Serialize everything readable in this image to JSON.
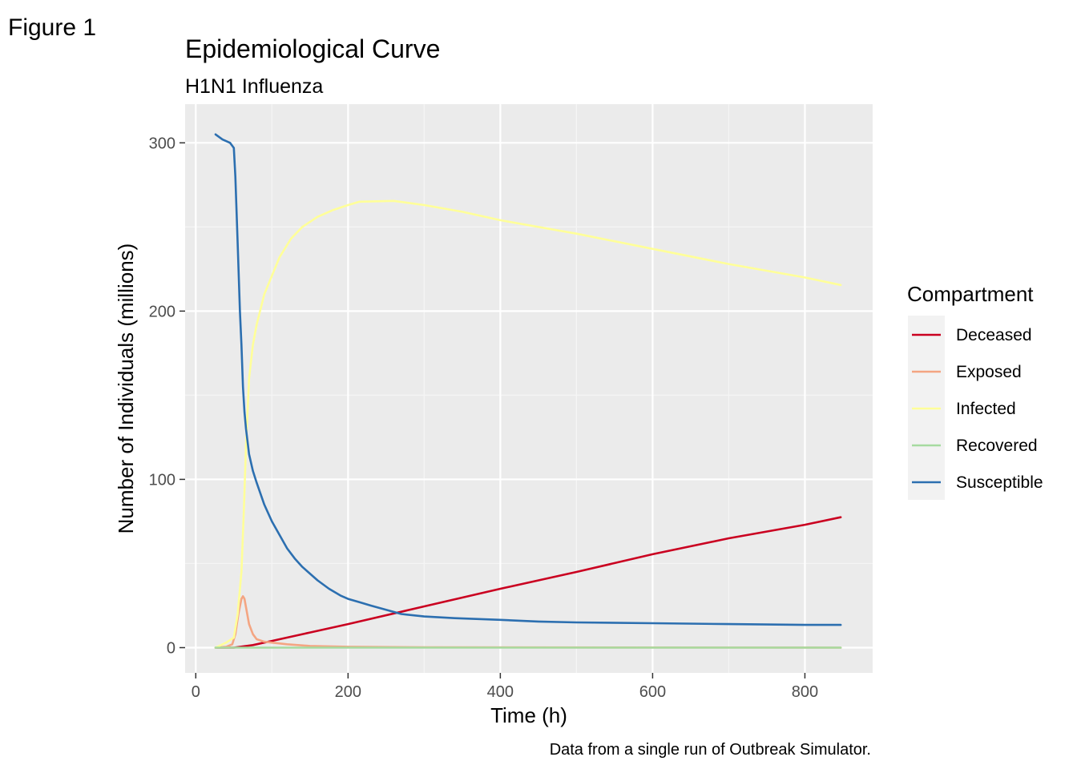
{
  "figure_label": "Figure 1",
  "caption": "Data from a single run of Outbreak Simulator.",
  "chart_data": {
    "type": "line",
    "title": "Epidemiological Curve",
    "subtitle": "H1N1 Influenza",
    "xlabel": "Time (h)",
    "ylabel": "Number of Individuals (millions)",
    "xlim": [
      -14,
      889
    ],
    "ylim": [
      -15,
      323
    ],
    "x_ticks": [
      0,
      200,
      400,
      600,
      800
    ],
    "y_ticks": [
      0,
      100,
      200,
      300
    ],
    "x_minor_ticks": [
      100,
      300,
      500,
      700
    ],
    "y_minor_ticks": [
      50,
      150,
      250
    ],
    "grid": true,
    "legend_title": "Compartment",
    "legend_position": "right",
    "series": [
      {
        "name": "Deceased",
        "color": "#CA0020",
        "x": [
          26,
          50,
          75,
          100,
          150,
          200,
          300,
          400,
          500,
          600,
          700,
          800,
          847
        ],
        "y": [
          0,
          0,
          1.5,
          4,
          9,
          14,
          24.5,
          35,
          45,
          55.5,
          65,
          73,
          77.5
        ]
      },
      {
        "name": "Exposed",
        "color": "#F4A582",
        "x": [
          26,
          40,
          48,
          52,
          56,
          60,
          62,
          64,
          66,
          70,
          75,
          80,
          90,
          100,
          120,
          150,
          200,
          300,
          847
        ],
        "y": [
          0,
          0.5,
          2,
          8,
          20,
          29,
          30.5,
          29,
          24,
          14,
          8,
          5,
          3.5,
          3,
          2,
          1,
          0.5,
          0.2,
          0
        ]
      },
      {
        "name": "Infected",
        "color": "#FFFF99",
        "x": [
          26,
          40,
          50,
          55,
          60,
          63,
          66,
          70,
          75,
          80,
          90,
          100,
          110,
          125,
          140,
          160,
          180,
          200,
          215,
          260,
          300,
          350,
          400,
          500,
          600,
          700,
          800,
          847
        ],
        "y": [
          0,
          3,
          6,
          20,
          45,
          80,
          120,
          160,
          180,
          192,
          210,
          221,
          232,
          243,
          250,
          256,
          260,
          263,
          265,
          265.5,
          263,
          259,
          254,
          246,
          237,
          228,
          220,
          215.5
        ]
      },
      {
        "name": "Recovered",
        "color": "#A6DBA0",
        "x": [
          26,
          200,
          400,
          600,
          847
        ],
        "y": [
          0,
          0,
          0,
          0,
          0
        ]
      },
      {
        "name": "Susceptible",
        "color": "#2C6FB0",
        "x": [
          26,
          35,
          45,
          50,
          52,
          55,
          58,
          60,
          62,
          64,
          66,
          70,
          75,
          80,
          90,
          100,
          110,
          120,
          130,
          140,
          150,
          160,
          175,
          190,
          200,
          215,
          230,
          250,
          270,
          300,
          340,
          400,
          450,
          500,
          600,
          700,
          800,
          847
        ],
        "y": [
          305,
          302,
          300,
          297,
          280,
          240,
          200,
          180,
          155,
          140,
          130,
          115,
          105,
          98,
          85,
          75,
          67,
          59,
          53,
          48,
          44,
          40,
          35,
          31,
          29,
          27,
          25,
          22.5,
          20,
          18.5,
          17.5,
          16.5,
          15.5,
          15,
          14.5,
          14,
          13.5,
          13.5
        ]
      }
    ]
  }
}
